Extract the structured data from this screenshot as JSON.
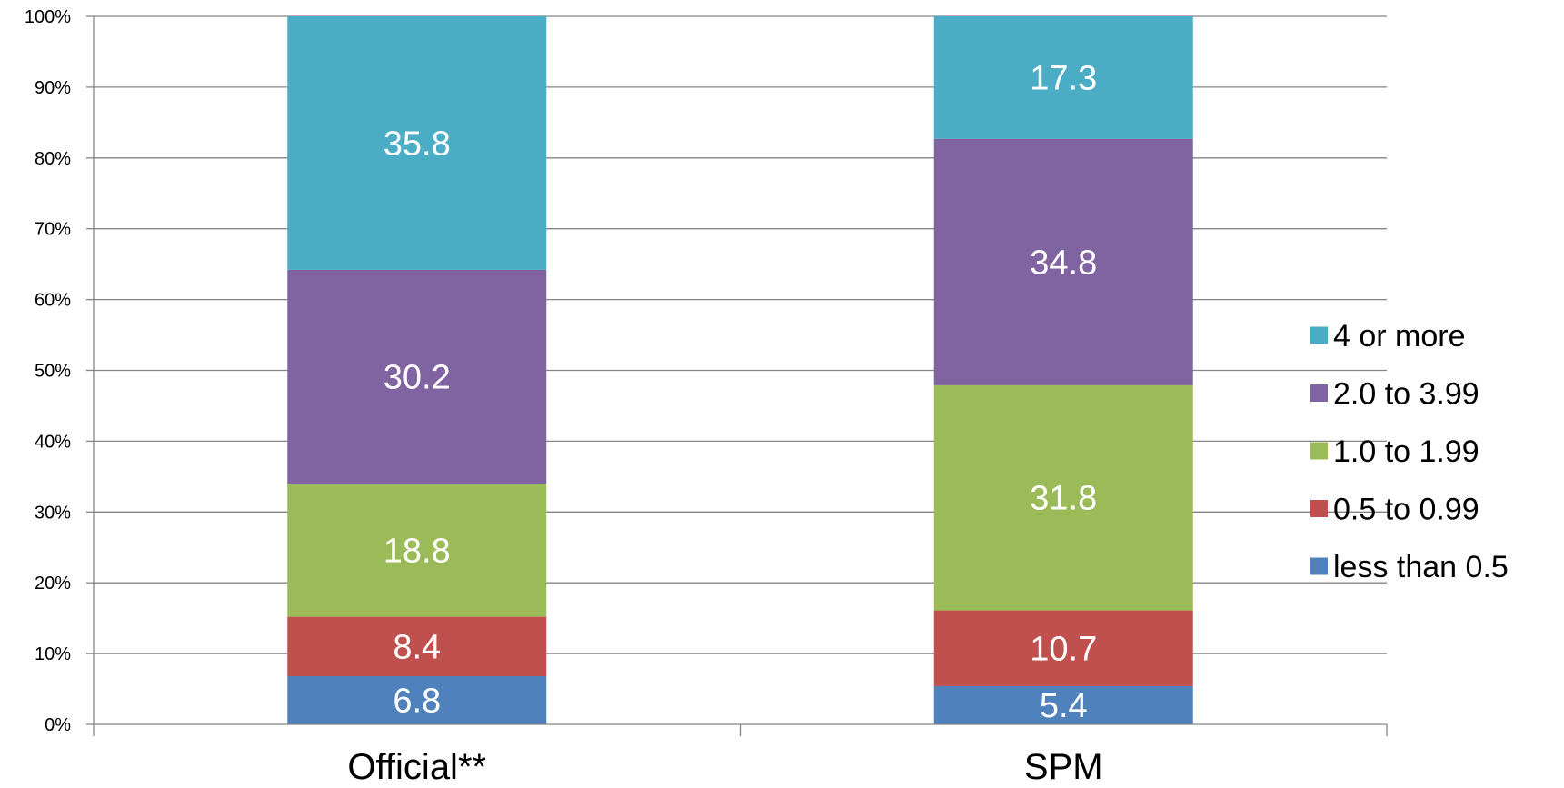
{
  "chart_data": {
    "type": "bar",
    "stacked": true,
    "percent_stacked": true,
    "title": "",
    "xlabel": "",
    "ylabel": "",
    "categories": [
      "Official**",
      "SPM"
    ],
    "series": [
      {
        "name": "less than 0.5",
        "color": "#4F81BD",
        "values": [
          6.8,
          5.4
        ]
      },
      {
        "name": "0.5 to 0.99",
        "color": "#C0504D",
        "values": [
          8.4,
          10.7
        ]
      },
      {
        "name": "1.0 to 1.99",
        "color": "#9BBB59",
        "values": [
          18.8,
          31.8
        ]
      },
      {
        "name": "2.0 to 3.99",
        "color": "#8064A2",
        "values": [
          30.2,
          34.8
        ]
      },
      {
        "name": "4 or more",
        "color": "#4BACC6",
        "values": [
          35.8,
          17.3
        ]
      }
    ],
    "yticks": [
      "0%",
      "10%",
      "20%",
      "30%",
      "40%",
      "50%",
      "60%",
      "70%",
      "80%",
      "90%",
      "100%"
    ],
    "ylim": [
      0,
      100
    ],
    "grid": true,
    "legend_position": "right",
    "legend_order": [
      "4 or more",
      "2.0 to 3.99",
      "1.0 to 1.99",
      "0.5 to 0.99",
      "less than 0.5"
    ],
    "data_labels": true
  }
}
